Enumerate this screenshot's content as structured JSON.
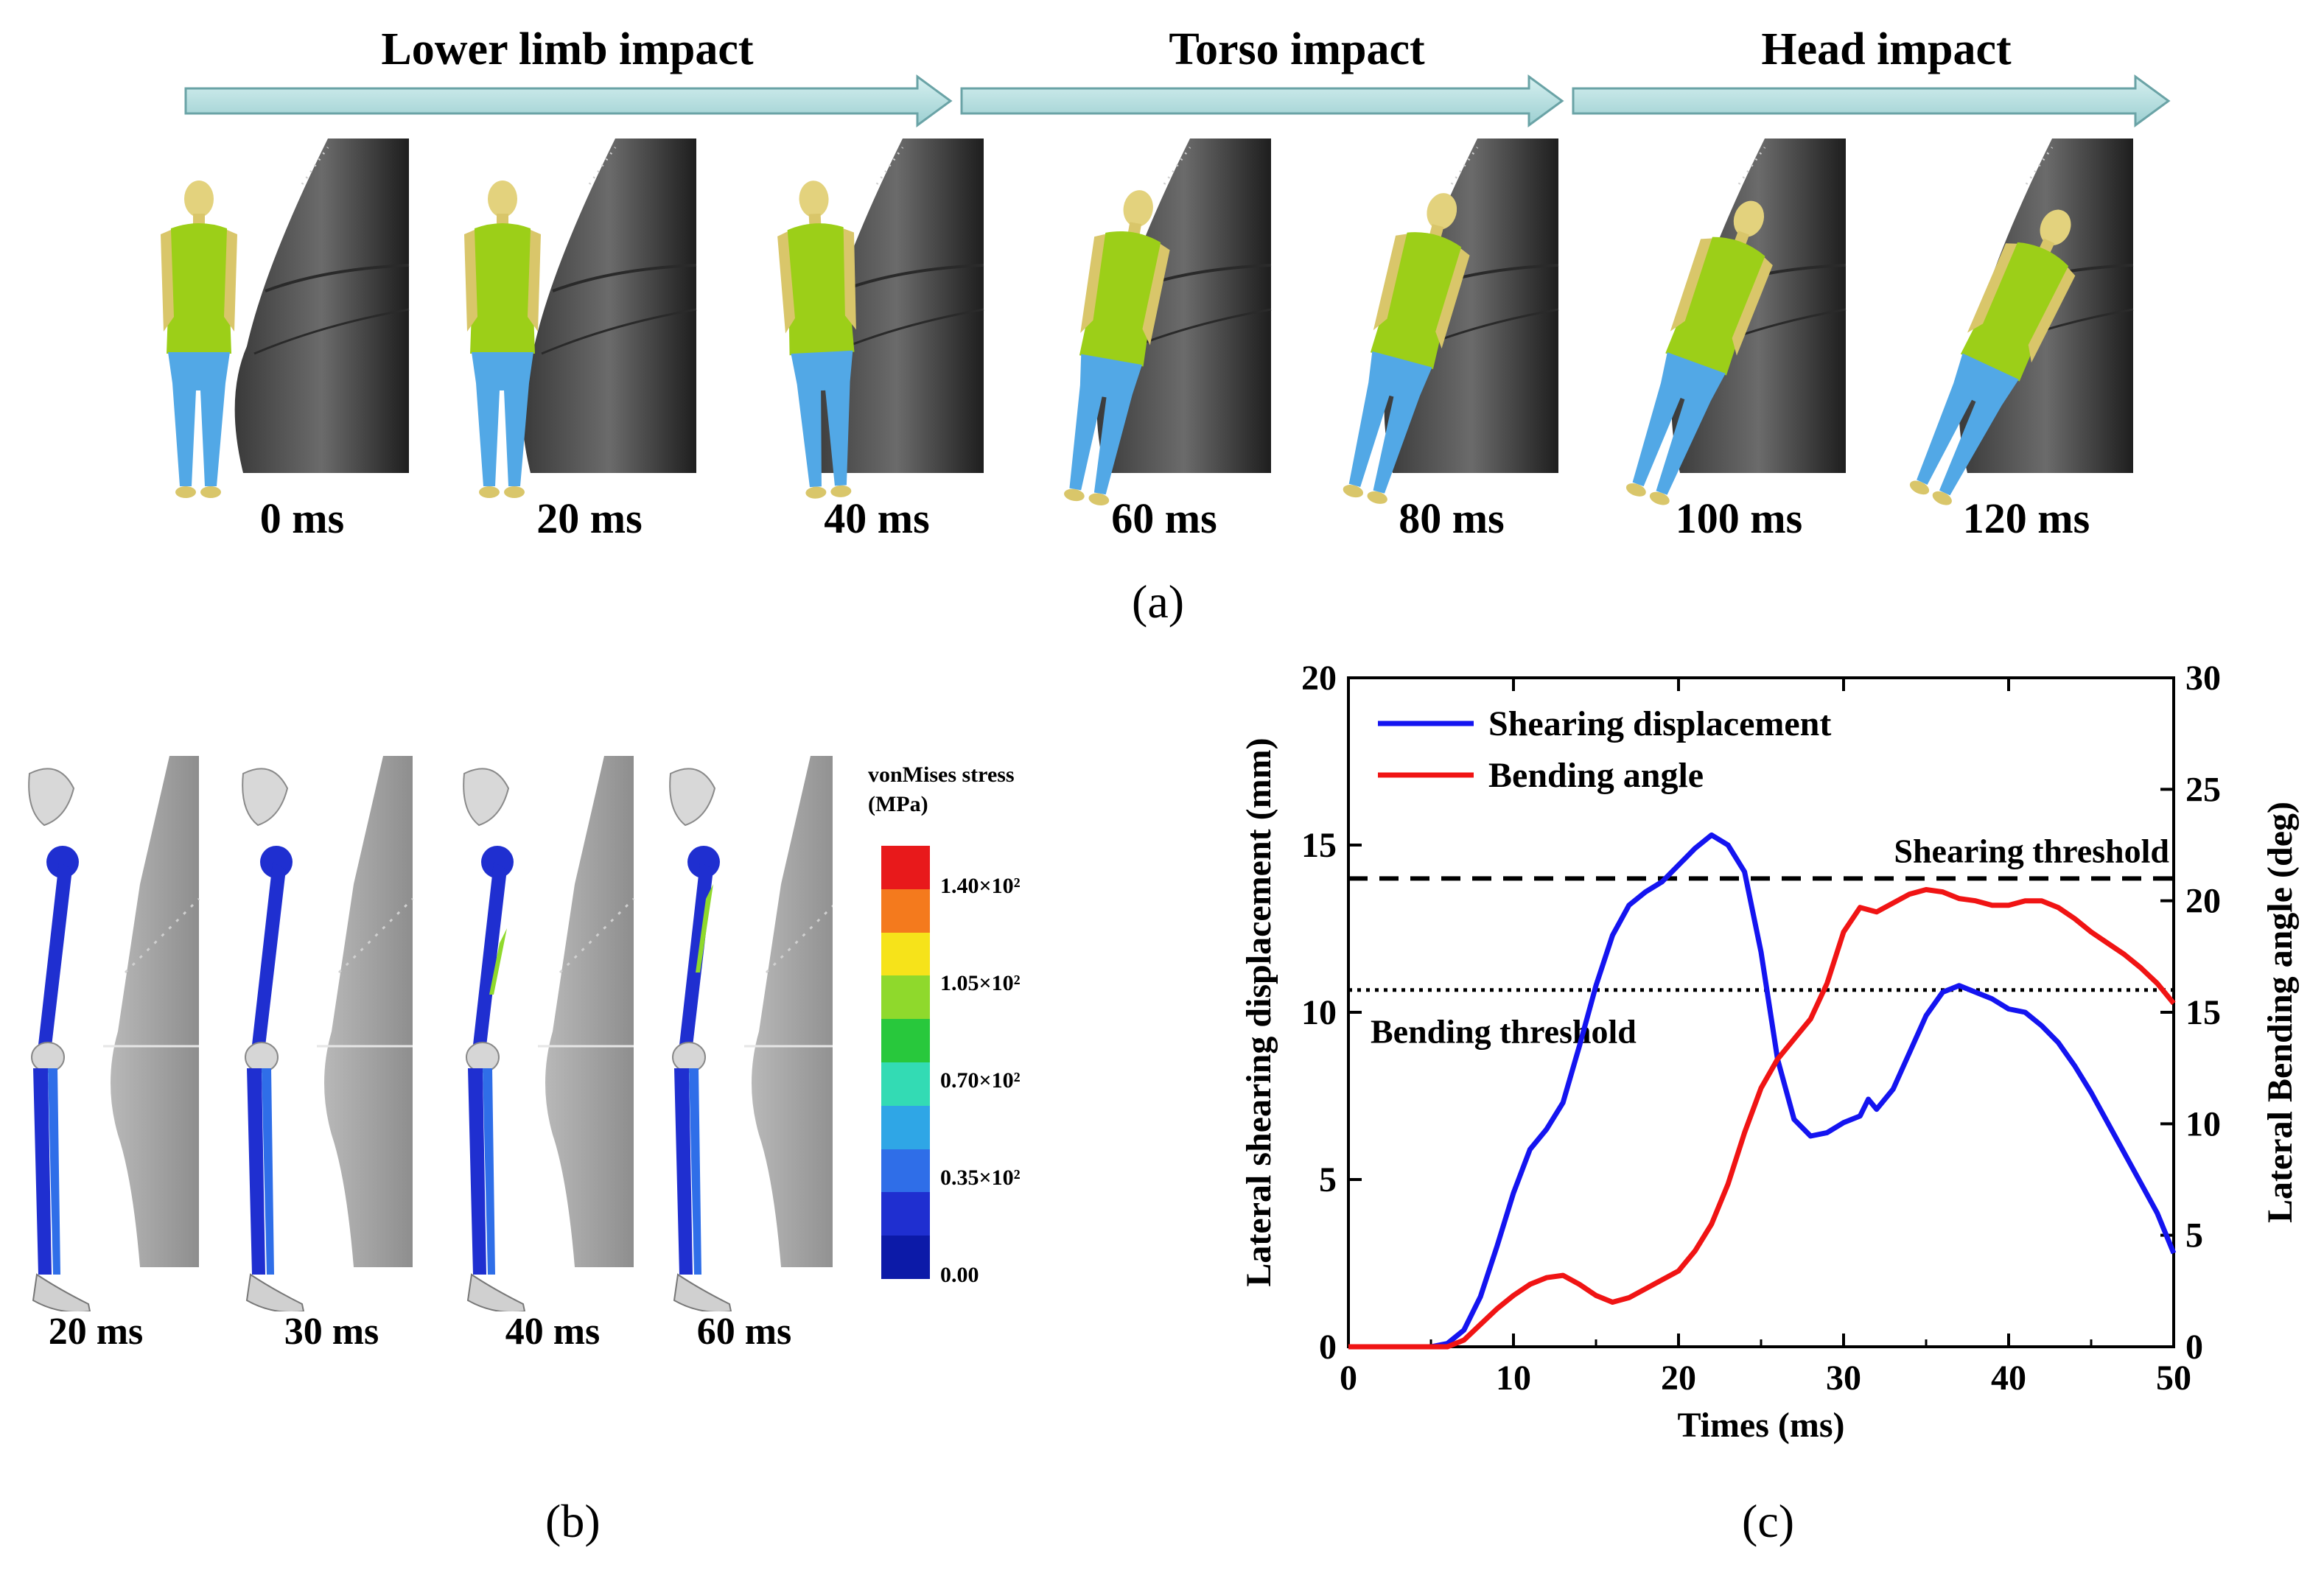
{
  "panel_a": {
    "phases": [
      "Lower limb impact",
      "Torso impact",
      "Head impact"
    ],
    "frames": [
      "0 ms",
      "20 ms",
      "40 ms",
      "60 ms",
      "80 ms",
      "100 ms",
      "120 ms"
    ],
    "label": "(a)"
  },
  "panel_b": {
    "frames": [
      "20 ms",
      "30 ms",
      "40 ms",
      "60 ms"
    ],
    "colorbar_title": [
      "vonMises stress",
      "(MPa)"
    ],
    "colorbar_ticks": [
      "1.40×10²",
      "1.05×10²",
      "0.70×10²",
      "0.35×10²",
      "0.00"
    ],
    "colorbar_colors": [
      "#e8191b",
      "#f47a1d",
      "#f6e31a",
      "#8fd92c",
      "#28c83c",
      "#33dbb4",
      "#2fa6e6",
      "#2f6ee8",
      "#1f2fd0",
      "#0c1aa8"
    ],
    "label": "(b)"
  },
  "panel_c": {
    "label": "(c)",
    "chart_data": {
      "type": "line",
      "xlabel": "Times (ms)",
      "ylabel_left": "Lateral shearing displacement (mm)",
      "ylabel_right": "Lateral Bending angle (deg)",
      "xlim": [
        0,
        50
      ],
      "ylim_left": [
        0,
        20
      ],
      "ylim_right": [
        0,
        30
      ],
      "x_ticks": [
        "0",
        "10",
        "20",
        "30",
        "40",
        "50"
      ],
      "y_ticks_left": [
        "0",
        "5",
        "10",
        "15",
        "20"
      ],
      "y_ticks_right": [
        "0",
        "5",
        "10",
        "15",
        "20",
        "25",
        "30"
      ],
      "thresholds": [
        {
          "name": "Shearing threshold",
          "axis": "left",
          "value": 14.0,
          "style": "dashed"
        },
        {
          "name": "Bending threshold",
          "axis": "right",
          "value": 16.0,
          "style": "dotted"
        }
      ],
      "series": [
        {
          "name": "Shearing displacement",
          "axis": "left",
          "color": "#1414f0",
          "x": [
            0,
            5,
            6,
            7,
            8,
            9,
            10,
            11,
            12,
            13,
            14,
            15,
            16,
            17,
            18,
            19,
            20,
            21,
            22,
            23,
            24,
            25,
            26,
            27,
            28,
            29,
            30,
            31,
            31.5,
            32,
            33,
            34,
            35,
            36,
            37,
            38,
            39,
            40,
            41,
            42,
            43,
            44,
            45,
            46,
            47,
            48,
            49,
            50
          ],
          "y": [
            0,
            0,
            0.1,
            0.5,
            1.5,
            3.0,
            4.6,
            5.9,
            6.5,
            7.3,
            9.0,
            10.8,
            12.3,
            13.2,
            13.6,
            13.9,
            14.4,
            14.9,
            15.3,
            15.0,
            14.2,
            11.8,
            8.6,
            6.8,
            6.3,
            6.4,
            6.7,
            6.9,
            7.4,
            7.1,
            7.7,
            8.8,
            9.9,
            10.6,
            10.8,
            10.6,
            10.4,
            10.1,
            10.0,
            9.6,
            9.1,
            8.4,
            7.6,
            6.7,
            5.8,
            4.9,
            4.0,
            2.8
          ]
        },
        {
          "name": "Bending angle",
          "axis": "right",
          "color": "#f01414",
          "x": [
            0,
            6,
            7,
            8,
            9,
            10,
            11,
            12,
            13,
            14,
            15,
            16,
            17,
            18,
            19,
            20,
            21,
            22,
            23,
            24,
            25,
            26,
            27,
            28,
            29,
            30,
            31,
            32,
            33,
            34,
            35,
            36,
            37,
            38,
            39,
            40,
            41,
            42,
            43,
            44,
            45,
            46,
            47,
            48,
            49,
            50
          ],
          "y": [
            0,
            0,
            0.3,
            1.0,
            1.7,
            2.3,
            2.8,
            3.1,
            3.2,
            2.8,
            2.3,
            2.0,
            2.2,
            2.6,
            3.0,
            3.4,
            4.3,
            5.5,
            7.3,
            9.6,
            11.6,
            12.9,
            13.8,
            14.7,
            16.3,
            18.6,
            19.7,
            19.5,
            19.9,
            20.3,
            20.5,
            20.4,
            20.1,
            20.0,
            19.8,
            19.8,
            20.0,
            20.0,
            19.7,
            19.2,
            18.6,
            18.1,
            17.6,
            17.0,
            16.3,
            15.4
          ]
        }
      ]
    }
  }
}
